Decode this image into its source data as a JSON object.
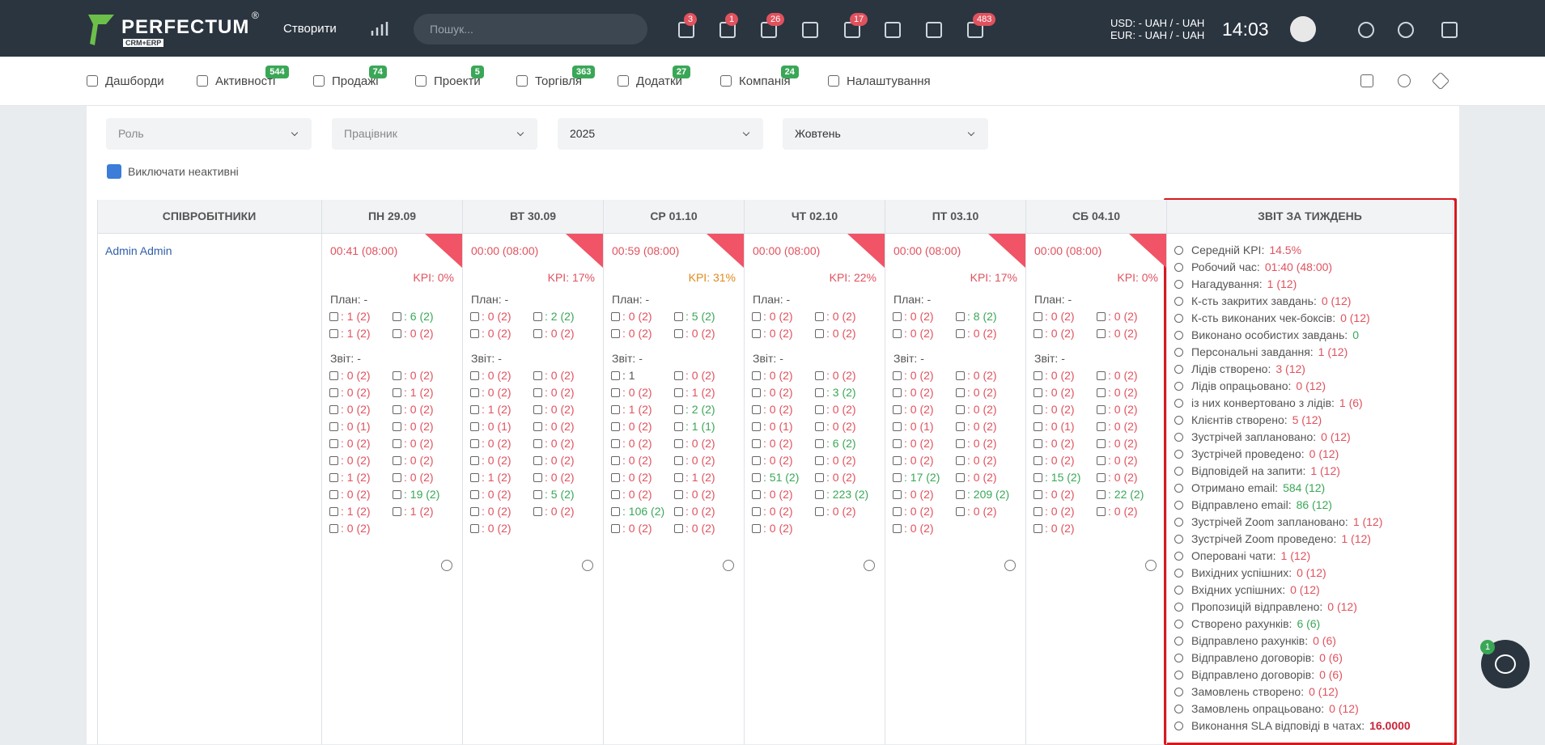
{
  "header": {
    "logo": "PERFECTUM",
    "logo_mark": "®",
    "logo_sub": "CRM+ERP",
    "create": "Створити",
    "search_placeholder": "Пошук...",
    "badges": [
      "3",
      "1",
      "26",
      "17",
      "483"
    ],
    "usd": "USD: - UAH / - UAH",
    "eur": "EUR: - UAH / - UAH",
    "time": "14:03"
  },
  "nav": [
    {
      "label": "Дашборди"
    },
    {
      "label": "Активності",
      "badge": "544"
    },
    {
      "label": "Продажі",
      "badge": "74"
    },
    {
      "label": "Проекти",
      "badge": "5"
    },
    {
      "label": "Торгівля",
      "badge": "363"
    },
    {
      "label": "Додатки",
      "badge": "27"
    },
    {
      "label": "Компанія",
      "badge": "24"
    },
    {
      "label": "Налаштування"
    }
  ],
  "filters": {
    "role": "Роль",
    "employee": "Працівник",
    "year": "2025",
    "month": "Жовтень",
    "exclude_inactive": "Виключати неактивні"
  },
  "table": {
    "employees_header": "СПІВРОБІТНИКИ",
    "employee": "Admin Admin",
    "days": [
      {
        "header": "ПН 29.09",
        "time": "00:41 (08:00)",
        "kpi": "KPI: 0%",
        "plan_label": "План: -",
        "plan": [
          ": 1 (2)",
          {
            "text": ": 6 (2)",
            "color": "green"
          },
          ": 1 (2)",
          ": 0 (2)"
        ],
        "report_label": "Звіт: -",
        "report": [
          ": 0 (2)",
          ": 0 (2)",
          ": 0 (2)",
          ": 1 (2)",
          ": 0 (2)",
          ": 0 (2)",
          ": 0 (1)",
          ": 0 (2)",
          ": 0 (2)",
          ": 0 (2)",
          ": 0 (2)",
          ": 0 (2)",
          ": 1 (2)",
          ": 0 (2)",
          ": 0 (2)",
          {
            "text": ": 19 (2)",
            "color": "green"
          },
          ": 1 (2)",
          ": 1 (2)",
          ": 0 (2)"
        ]
      },
      {
        "header": "ВТ 30.09",
        "time": "00:00 (08:00)",
        "kpi": "KPI: 17%",
        "plan_label": "План: -",
        "plan": [
          ": 0 (2)",
          {
            "text": ": 2 (2)",
            "color": "green"
          },
          ": 0 (2)",
          ": 0 (2)"
        ],
        "report_label": "Звіт: -",
        "report": [
          ": 0 (2)",
          ": 0 (2)",
          ": 0 (2)",
          ": 0 (2)",
          ": 1 (2)",
          ": 0 (2)",
          ": 0 (1)",
          ": 0 (2)",
          ": 0 (2)",
          ": 0 (2)",
          ": 0 (2)",
          ": 0 (2)",
          ": 1 (2)",
          ": 0 (2)",
          ": 0 (2)",
          {
            "text": ": 5 (2)",
            "color": "green"
          },
          ": 0 (2)",
          ": 0 (2)",
          ": 0 (2)"
        ]
      },
      {
        "header": "СР 01.10",
        "time": "00:59 (08:00)",
        "kpi": "KPI: 31%",
        "kpi_color": "orange",
        "plan_label": "План: -",
        "plan": [
          ": 0 (2)",
          {
            "text": ": 5 (2)",
            "color": "green"
          },
          ": 0 (2)",
          ": 0 (2)"
        ],
        "report_label": "Звіт: -",
        "report": [
          {
            "text": ": 1",
            "color": "dark"
          },
          ": 0 (2)",
          ": 0 (2)",
          ": 1 (2)",
          ": 1 (2)",
          {
            "text": ": 2 (2)",
            "color": "green"
          },
          ": 0 (2)",
          {
            "text": ": 1 (1)",
            "color": "green"
          },
          ": 0 (2)",
          ": 0 (2)",
          ": 0 (2)",
          ": 0 (2)",
          ": 0 (2)",
          ": 1 (2)",
          ": 0 (2)",
          ": 0 (2)",
          {
            "text": ": 106 (2)",
            "color": "green"
          },
          ": 0 (2)",
          ": 0 (2)",
          ": 0 (2)"
        ]
      },
      {
        "header": "ЧТ 02.10",
        "time": "00:00 (08:00)",
        "kpi": "KPI: 22%",
        "plan_label": "План: -",
        "plan": [
          ": 0 (2)",
          ": 0 (2)",
          ": 0 (2)",
          ": 0 (2)"
        ],
        "report_label": "Звіт: -",
        "report": [
          ": 0 (2)",
          ": 0 (2)",
          ": 0 (2)",
          {
            "text": ": 3 (2)",
            "color": "green"
          },
          ": 0 (2)",
          ": 0 (2)",
          ": 0 (1)",
          ": 0 (2)",
          ": 0 (2)",
          {
            "text": ": 6 (2)",
            "color": "green"
          },
          ": 0 (2)",
          ": 0 (2)",
          {
            "text": ": 51 (2)",
            "color": "green"
          },
          ": 0 (2)",
          ": 0 (2)",
          {
            "text": ": 223 (2)",
            "color": "green"
          },
          ": 0 (2)",
          ": 0 (2)",
          ": 0 (2)"
        ]
      },
      {
        "header": "ПТ 03.10",
        "time": "00:00 (08:00)",
        "kpi": "KPI: 17%",
        "plan_label": "План: -",
        "plan": [
          ": 0 (2)",
          {
            "text": ": 8 (2)",
            "color": "green"
          },
          ": 0 (2)",
          ": 0 (2)"
        ],
        "report_label": "Звіт: -",
        "report": [
          ": 0 (2)",
          ": 0 (2)",
          ": 0 (2)",
          ": 0 (2)",
          ": 0 (2)",
          ": 0 (2)",
          ": 0 (1)",
          ": 0 (2)",
          ": 0 (2)",
          ": 0 (2)",
          ": 0 (2)",
          ": 0 (2)",
          {
            "text": ": 17 (2)",
            "color": "green"
          },
          ": 0 (2)",
          ": 0 (2)",
          {
            "text": ": 209 (2)",
            "color": "green"
          },
          ": 0 (2)",
          ": 0 (2)",
          ": 0 (2)"
        ]
      },
      {
        "header": "СБ 04.10",
        "time": "00:00 (08:00)",
        "kpi": "KPI: 0%",
        "plan_label": "План: -",
        "plan": [
          ": 0 (2)",
          ": 0 (2)",
          ": 0 (2)",
          ": 0 (2)"
        ],
        "report_label": "Звіт: -",
        "report": [
          ": 0 (2)",
          ": 0 (2)",
          ": 0 (2)",
          ": 0 (2)",
          ": 0 (2)",
          ": 0 (2)",
          ": 0 (1)",
          ": 0 (2)",
          ": 0 (2)",
          ": 0 (2)",
          ": 0 (2)",
          ": 0 (2)",
          {
            "text": ": 15 (2)",
            "color": "green"
          },
          ": 0 (2)",
          ": 0 (2)",
          {
            "text": ": 22 (2)",
            "color": "green"
          },
          ": 0 (2)",
          ": 0 (2)",
          ": 0 (2)"
        ]
      }
    ],
    "weekly_header": "ЗВІТ ЗА ТИЖДЕНЬ",
    "weekly": [
      {
        "label": "Середній KPI:",
        "value": "14.5%"
      },
      {
        "label": "Робочий час:",
        "value": "01:40 (48:00)"
      },
      {
        "label": "Нагадування:",
        "value": "1 (12)"
      },
      {
        "label": "К-сть закритих завдань:",
        "value": "0 (12)"
      },
      {
        "label": "К-сть виконаних чек-боксів:",
        "value": "0 (12)"
      },
      {
        "label": "Виконано особистих завдань:",
        "value": "0",
        "color": "green"
      },
      {
        "label": "Персональні завдання:",
        "value": "1 (12)"
      },
      {
        "label": "Лідів створено:",
        "value": "3 (12)"
      },
      {
        "label": "Лідів опрацьовано:",
        "value": "0 (12)"
      },
      {
        "label": "із них конвертовано з лідів:",
        "value": "1 (6)"
      },
      {
        "label": "Клієнтів створено:",
        "value": "5 (12)"
      },
      {
        "label": "Зустрічей заплановано:",
        "value": "0 (12)"
      },
      {
        "label": "Зустрічей проведено:",
        "value": "0 (12)"
      },
      {
        "label": "Відповідей на запити:",
        "value": "1 (12)"
      },
      {
        "label": "Отримано email:",
        "value": "584 (12)",
        "color": "green"
      },
      {
        "label": "Відправлено email:",
        "value": "86 (12)",
        "color": "green"
      },
      {
        "label": "Зустрічей Zoom заплановано:",
        "value": "1 (12)"
      },
      {
        "label": "Зустрічей Zoom проведено:",
        "value": "1 (12)"
      },
      {
        "label": "Оперовані чати:",
        "value": "1 (12)"
      },
      {
        "label": "Вихідних успішних:",
        "value": "0 (12)"
      },
      {
        "label": "Вхідних успішних:",
        "value": "0 (12)"
      },
      {
        "label": "Пропозицій відправлено:",
        "value": "0 (12)"
      },
      {
        "label": "Створено рахунків:",
        "value": "6 (6)",
        "color": "green"
      },
      {
        "label": "Відправлено рахунків:",
        "value": "0 (6)"
      },
      {
        "label": "Відправлено договорів:",
        "value": "0 (6)"
      },
      {
        "label": "Відправлено договорів:",
        "value": "0 (6)"
      },
      {
        "label": "Замовлень створено:",
        "value": "0 (12)"
      },
      {
        "label": "Замовлень опрацьовано:",
        "value": "0 (12)"
      },
      {
        "label": "Виконання SLA відповіді в чатах:",
        "value": "16.0000",
        "bold": true
      }
    ]
  },
  "chat_badge": "1"
}
